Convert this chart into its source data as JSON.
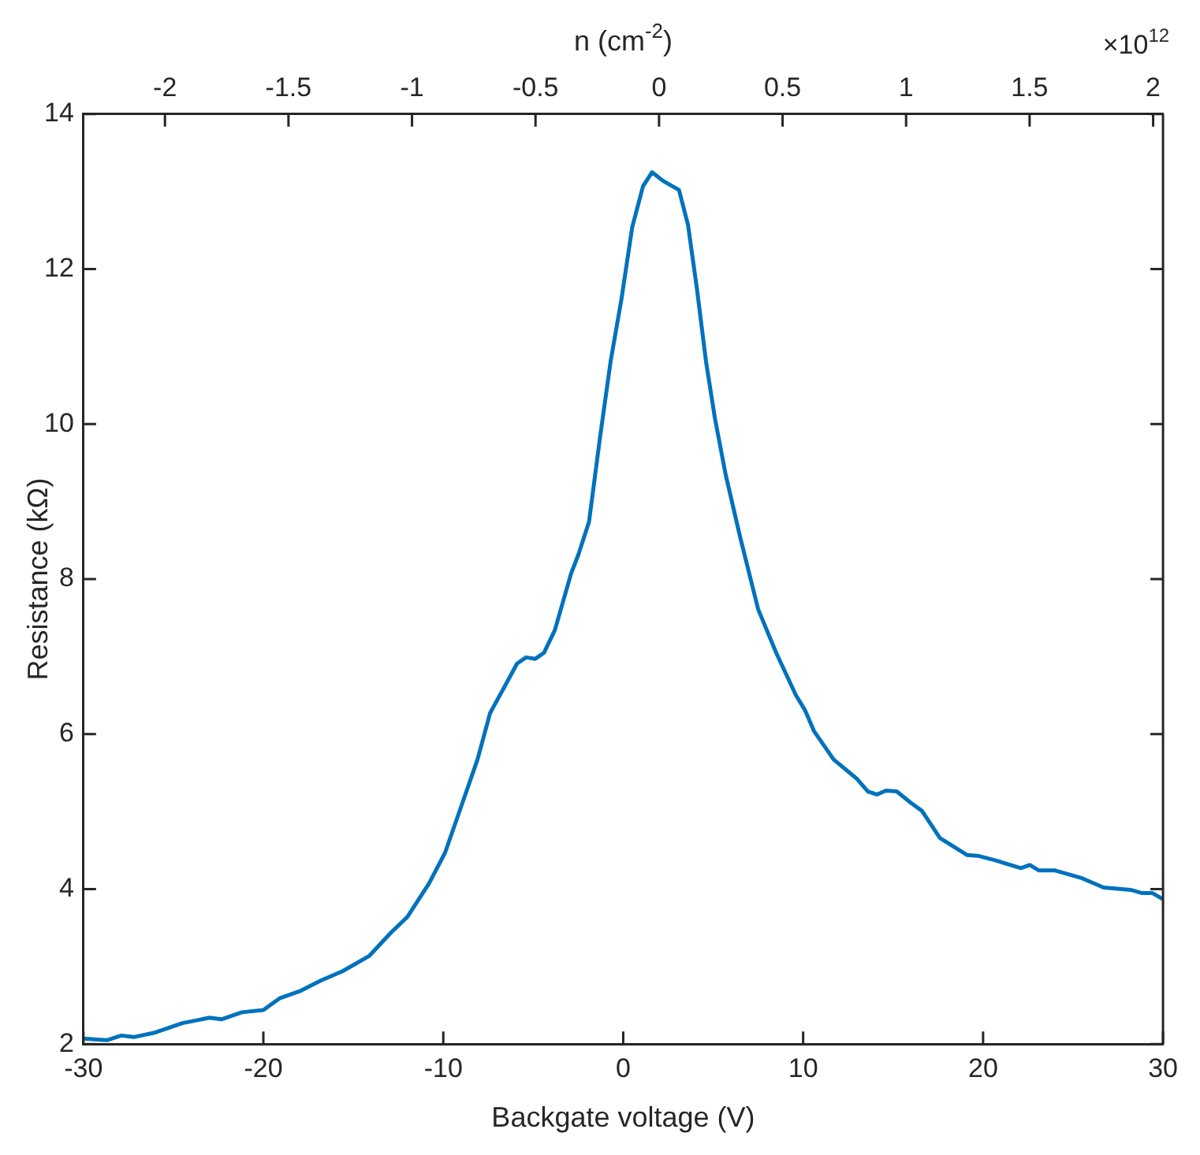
{
  "chart_data": {
    "type": "line",
    "xlabel": "Backgate voltage (V)",
    "ylabel": "Resistance (kΩ)",
    "x2label": "n (cm$^{-2}$)",
    "annotations": [
      "×10$^{12}$"
    ],
    "xlim": [
      -30,
      30
    ],
    "xticks": [
      -30,
      -20,
      -10,
      0,
      10,
      20,
      30
    ],
    "ylim": [
      2,
      14
    ],
    "yticks": [
      2,
      4,
      6,
      8,
      10,
      12,
      14
    ],
    "x2lim": [
      -2.33,
      2.04
    ],
    "x2ticks": [
      -2,
      -1.5,
      -1,
      -0.5,
      0,
      0.5,
      1,
      1.5,
      2
    ],
    "marker": "none",
    "series": [
      {
        "color": "#0072bd",
        "x": [
          -30,
          -28.7,
          -27.9,
          -27.2,
          -26.0,
          -24.5,
          -23.0,
          -22.3,
          -21.2,
          -20.0,
          -19.1,
          -17.9,
          -16.8,
          -15.6,
          -14.1,
          -12.9,
          -12.0,
          -10.8,
          -9.9,
          -9.0,
          -8.1,
          -7.4,
          -6.6,
          -5.9,
          -5.4,
          -4.9,
          -4.4,
          -3.8,
          -2.9,
          -2.5,
          -1.9,
          -1.3,
          -0.7,
          -0.1,
          0.5,
          1.1,
          1.6,
          2.2,
          3.1,
          3.6,
          4.1,
          4.6,
          5.1,
          5.7,
          6.5,
          7.5,
          8.5,
          9.6,
          10.1,
          10.6,
          11.7,
          13.0,
          13.6,
          14.1,
          14.6,
          15.2,
          16.0,
          16.6,
          17.6,
          19.1,
          19.7,
          20.7,
          22.1,
          22.6,
          23.1,
          24.0,
          25.5,
          26.7,
          28.2,
          28.8,
          29.4,
          30.0
        ],
        "values": [
          2.07,
          2.05,
          2.11,
          2.09,
          2.15,
          2.27,
          2.34,
          2.32,
          2.41,
          2.44,
          2.59,
          2.69,
          2.82,
          2.94,
          3.14,
          3.44,
          3.64,
          4.07,
          4.47,
          5.07,
          5.67,
          6.27,
          6.61,
          6.91,
          6.99,
          6.97,
          7.05,
          7.34,
          8.07,
          8.31,
          8.74,
          9.81,
          10.81,
          11.61,
          12.54,
          13.07,
          13.25,
          13.14,
          13.02,
          12.57,
          11.74,
          10.81,
          10.07,
          9.34,
          8.54,
          7.61,
          7.05,
          6.5,
          6.31,
          6.04,
          5.67,
          5.42,
          5.26,
          5.22,
          5.27,
          5.26,
          5.11,
          5.01,
          4.66,
          4.44,
          4.43,
          4.37,
          4.27,
          4.31,
          4.24,
          4.24,
          4.14,
          4.02,
          3.99,
          3.95,
          3.95,
          3.87
        ]
      }
    ]
  }
}
